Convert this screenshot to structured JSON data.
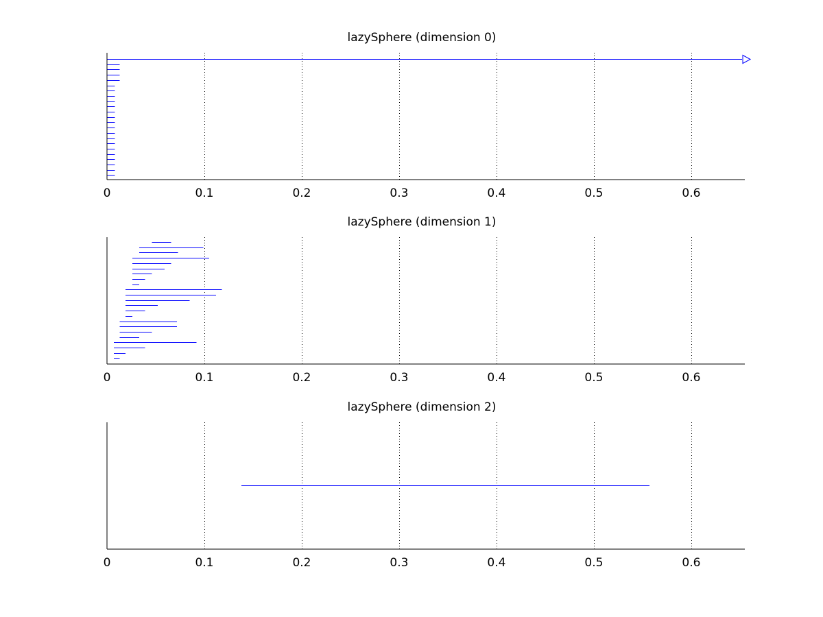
{
  "chart_data": [
    {
      "type": "barcode",
      "title": "lazySphere (dimension 0)",
      "xlim": [
        0,
        0.655
      ],
      "xticks": [
        "0",
        "0.1",
        "0.2",
        "0.3",
        "0.4",
        "0.5",
        "0.6"
      ],
      "grid": "x-dotted",
      "color": "#0000ff",
      "infinite_marker": "open-triangle",
      "bars": [
        {
          "start": 0,
          "end": 0.655,
          "infinite": true
        },
        {
          "start": 0,
          "end": 0.013
        },
        {
          "start": 0,
          "end": 0.013
        },
        {
          "start": 0,
          "end": 0.013
        },
        {
          "start": 0,
          "end": 0.013
        },
        {
          "start": 0,
          "end": 0.008
        },
        {
          "start": 0,
          "end": 0.008
        },
        {
          "start": 0,
          "end": 0.008
        },
        {
          "start": 0,
          "end": 0.008
        },
        {
          "start": 0,
          "end": 0.008
        },
        {
          "start": 0,
          "end": 0.008
        },
        {
          "start": 0,
          "end": 0.008
        },
        {
          "start": 0,
          "end": 0.008
        },
        {
          "start": 0,
          "end": 0.008
        },
        {
          "start": 0,
          "end": 0.008
        },
        {
          "start": 0,
          "end": 0.008
        },
        {
          "start": 0,
          "end": 0.008
        },
        {
          "start": 0,
          "end": 0.008
        },
        {
          "start": 0,
          "end": 0.008
        },
        {
          "start": 0,
          "end": 0.008
        },
        {
          "start": 0,
          "end": 0.008
        },
        {
          "start": 0,
          "end": 0.008
        },
        {
          "start": 0,
          "end": 0.008
        }
      ]
    },
    {
      "type": "barcode",
      "title": "lazySphere (dimension 1)",
      "xlim": [
        0,
        0.655
      ],
      "xticks": [
        "0",
        "0.1",
        "0.2",
        "0.3",
        "0.4",
        "0.5",
        "0.6"
      ],
      "grid": "x-dotted",
      "color": "#0000ff",
      "bars": [
        {
          "start": 0.046,
          "end": 0.066
        },
        {
          "start": 0.033,
          "end": 0.099
        },
        {
          "start": 0.033,
          "end": 0.073
        },
        {
          "start": 0.026,
          "end": 0.105
        },
        {
          "start": 0.026,
          "end": 0.066
        },
        {
          "start": 0.026,
          "end": 0.059
        },
        {
          "start": 0.026,
          "end": 0.046
        },
        {
          "start": 0.026,
          "end": 0.039
        },
        {
          "start": 0.026,
          "end": 0.033
        },
        {
          "start": 0.019,
          "end": 0.118
        },
        {
          "start": 0.019,
          "end": 0.112
        },
        {
          "start": 0.019,
          "end": 0.085
        },
        {
          "start": 0.019,
          "end": 0.052
        },
        {
          "start": 0.019,
          "end": 0.039
        },
        {
          "start": 0.019,
          "end": 0.026
        },
        {
          "start": 0.013,
          "end": 0.072
        },
        {
          "start": 0.013,
          "end": 0.072
        },
        {
          "start": 0.013,
          "end": 0.046
        },
        {
          "start": 0.013,
          "end": 0.033
        },
        {
          "start": 0.007,
          "end": 0.092
        },
        {
          "start": 0.007,
          "end": 0.039
        },
        {
          "start": 0.007,
          "end": 0.019
        },
        {
          "start": 0.007,
          "end": 0.013
        }
      ]
    },
    {
      "type": "barcode",
      "title": "lazySphere (dimension 2)",
      "xlim": [
        0,
        0.655
      ],
      "xticks": [
        "0",
        "0.1",
        "0.2",
        "0.3",
        "0.4",
        "0.5",
        "0.6"
      ],
      "grid": "x-dotted",
      "color": "#0000ff",
      "bars": [
        {
          "start": 0.138,
          "end": 0.557
        }
      ]
    }
  ]
}
